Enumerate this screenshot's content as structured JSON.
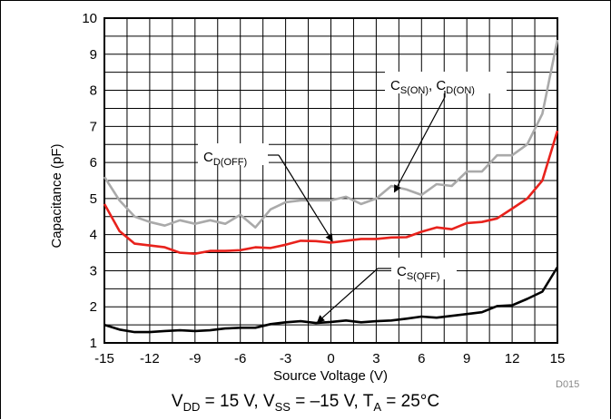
{
  "chart_data": {
    "type": "line",
    "xlabel": "Source Voltage (V)",
    "ylabel": "Capacitance (pF)",
    "xlim": [
      -15,
      15
    ],
    "ylim": [
      1,
      10
    ],
    "x_ticks": [
      -15,
      -12,
      -9,
      -6,
      -3,
      0,
      3,
      6,
      9,
      12,
      15
    ],
    "y_ticks": [
      1,
      2,
      3,
      4,
      5,
      6,
      7,
      8,
      9,
      10
    ],
    "grid": true,
    "x": [
      -15,
      -14,
      -13,
      -12,
      -11,
      -10,
      -9,
      -8,
      -7,
      -6,
      -5,
      -4,
      -3,
      -2,
      -1,
      0,
      1,
      2,
      3,
      4,
      5,
      6,
      7,
      8,
      9,
      10,
      11,
      12,
      13,
      14,
      15
    ],
    "series": [
      {
        "name": "CS(ON), CD(ON)",
        "color": "#aaaaaa",
        "values": [
          5.6,
          4.95,
          4.5,
          4.35,
          4.25,
          4.4,
          4.3,
          4.4,
          4.3,
          4.55,
          4.2,
          4.7,
          4.9,
          4.95,
          4.95,
          4.95,
          5.05,
          4.85,
          5.0,
          5.35,
          5.25,
          5.1,
          5.4,
          5.35,
          5.75,
          5.75,
          6.2,
          6.2,
          6.5,
          7.35,
          9.4
        ]
      },
      {
        "name": "CD(OFF)",
        "color": "#e8221c",
        "values": [
          4.85,
          4.1,
          3.75,
          3.7,
          3.65,
          3.5,
          3.47,
          3.55,
          3.55,
          3.57,
          3.65,
          3.63,
          3.72,
          3.83,
          3.82,
          3.78,
          3.83,
          3.88,
          3.88,
          3.92,
          3.93,
          4.08,
          4.2,
          4.15,
          4.32,
          4.35,
          4.45,
          4.72,
          5.0,
          5.5,
          6.88
        ]
      },
      {
        "name": "CS(OFF)",
        "color": "#000000",
        "values": [
          1.5,
          1.37,
          1.3,
          1.3,
          1.33,
          1.35,
          1.33,
          1.35,
          1.4,
          1.42,
          1.42,
          1.52,
          1.57,
          1.6,
          1.55,
          1.58,
          1.62,
          1.57,
          1.6,
          1.62,
          1.67,
          1.73,
          1.7,
          1.75,
          1.8,
          1.85,
          2.02,
          2.04,
          2.22,
          2.42,
          3.1
        ]
      }
    ],
    "annotations": [
      {
        "base": "C",
        "sub": "S(ON)",
        "sep": ", ",
        "base2": "C",
        "sub2": "D(ON)"
      },
      {
        "base": "C",
        "sub": "D(OFF)"
      },
      {
        "base": "C",
        "sub": "S(OFF)"
      }
    ]
  },
  "caption": {
    "vdd_base": "V",
    "vdd_sub": "DD",
    "vdd_val": " = 15 V, ",
    "vss_base": "V",
    "vss_sub": "SS",
    "vss_val": " = –15 V, ",
    "ta_base": "T",
    "ta_sub": "A",
    "ta_val": " = 25°C"
  },
  "figure_code": "D015"
}
